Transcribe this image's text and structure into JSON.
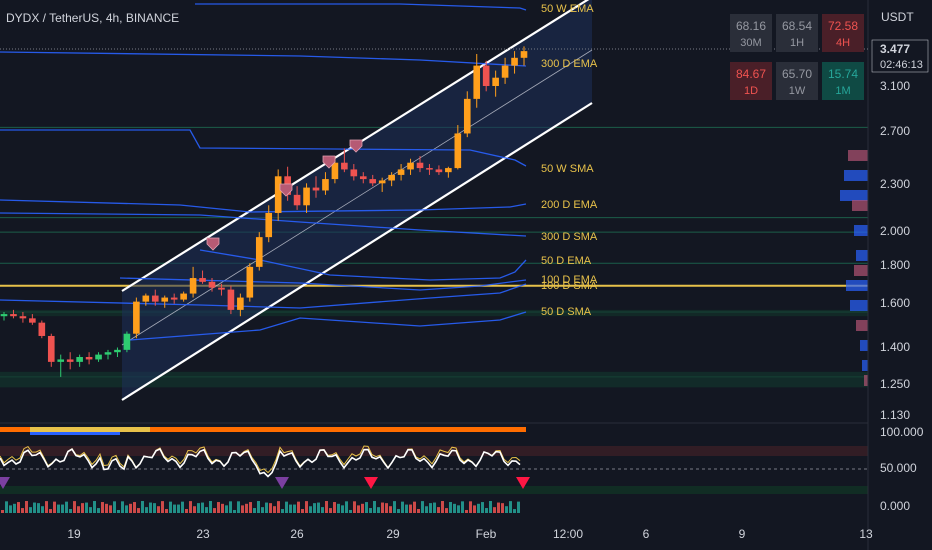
{
  "header": {
    "symbol": "DYDX / TetherUS, 4h, BINANCE",
    "quote": "USDT"
  },
  "colors": {
    "background": "#131722",
    "up": "#26a69a",
    "down": "#ef5350",
    "ma_blue": "#2962ff",
    "channel": "#ffffff",
    "channel_fill": "#1e2f5a",
    "hline_yellow": "#e8c24a",
    "label_yellow": "#e8c24a"
  },
  "chart_data": {
    "type": "candlestick",
    "y_scale": "log",
    "ylim": [
      1.13,
      4.1
    ],
    "price_ticks": [
      "3.100",
      "2.700",
      "2.300",
      "2.000",
      "1.800",
      "1.600",
      "1.400",
      "1.250",
      "1.130"
    ],
    "time_ticks": [
      "19",
      "23",
      "26",
      "29",
      "Feb",
      "12:00",
      "6",
      "9",
      "13"
    ],
    "current_price": "3.477",
    "countdown": "02:46:13",
    "ma_labels": [
      "50 W EMA",
      "300 D EMA",
      "50 W SMA",
      "200 D EMA",
      "300 D SMA",
      "50 D EMA",
      "100 D EMA",
      "100 D SMA",
      "50 D SMA"
    ],
    "horizontal_levels": [
      2.73,
      2.07,
      1.98,
      1.8,
      1.68,
      1.55,
      1.27
    ],
    "candles": [
      [
        1.53,
        1.55,
        1.51,
        1.54
      ],
      [
        1.54,
        1.56,
        1.52,
        1.53
      ],
      [
        1.53,
        1.55,
        1.5,
        1.52
      ],
      [
        1.52,
        1.54,
        1.49,
        1.5
      ],
      [
        1.5,
        1.51,
        1.43,
        1.44
      ],
      [
        1.44,
        1.45,
        1.31,
        1.33
      ],
      [
        1.33,
        1.36,
        1.27,
        1.34
      ],
      [
        1.34,
        1.37,
        1.3,
        1.33
      ],
      [
        1.33,
        1.36,
        1.31,
        1.35
      ],
      [
        1.35,
        1.37,
        1.32,
        1.34
      ],
      [
        1.34,
        1.37,
        1.33,
        1.36
      ],
      [
        1.36,
        1.38,
        1.34,
        1.37
      ],
      [
        1.37,
        1.39,
        1.35,
        1.38
      ],
      [
        1.38,
        1.46,
        1.37,
        1.45
      ],
      [
        1.45,
        1.62,
        1.43,
        1.6
      ],
      [
        1.6,
        1.64,
        1.58,
        1.63
      ],
      [
        1.63,
        1.66,
        1.58,
        1.6
      ],
      [
        1.6,
        1.63,
        1.57,
        1.62
      ],
      [
        1.62,
        1.64,
        1.59,
        1.61
      ],
      [
        1.61,
        1.65,
        1.6,
        1.64
      ],
      [
        1.64,
        1.78,
        1.62,
        1.72
      ],
      [
        1.72,
        1.76,
        1.69,
        1.7
      ],
      [
        1.7,
        1.72,
        1.65,
        1.67
      ],
      [
        1.67,
        1.69,
        1.63,
        1.66
      ],
      [
        1.66,
        1.68,
        1.54,
        1.56
      ],
      [
        1.56,
        1.64,
        1.53,
        1.62
      ],
      [
        1.62,
        1.8,
        1.6,
        1.78
      ],
      [
        1.78,
        1.98,
        1.76,
        1.95
      ],
      [
        1.95,
        2.15,
        1.92,
        2.1
      ],
      [
        2.1,
        2.4,
        2.05,
        2.35
      ],
      [
        2.35,
        2.42,
        2.18,
        2.22
      ],
      [
        2.22,
        2.28,
        2.12,
        2.15
      ],
      [
        2.15,
        2.3,
        2.1,
        2.27
      ],
      [
        2.27,
        2.35,
        2.2,
        2.25
      ],
      [
        2.25,
        2.38,
        2.22,
        2.33
      ],
      [
        2.33,
        2.5,
        2.3,
        2.45
      ],
      [
        2.45,
        2.56,
        2.38,
        2.4
      ],
      [
        2.4,
        2.44,
        2.32,
        2.35
      ],
      [
        2.35,
        2.38,
        2.3,
        2.33
      ],
      [
        2.33,
        2.36,
        2.28,
        2.3
      ],
      [
        2.3,
        2.34,
        2.24,
        2.32
      ],
      [
        2.32,
        2.38,
        2.28,
        2.36
      ],
      [
        2.36,
        2.44,
        2.32,
        2.4
      ],
      [
        2.4,
        2.48,
        2.36,
        2.45
      ],
      [
        2.45,
        2.5,
        2.38,
        2.41
      ],
      [
        2.41,
        2.44,
        2.36,
        2.4
      ],
      [
        2.4,
        2.43,
        2.36,
        2.38
      ],
      [
        2.38,
        2.42,
        2.34,
        2.41
      ],
      [
        2.41,
        2.75,
        2.4,
        2.68
      ],
      [
        2.68,
        3.05,
        2.65,
        2.98
      ],
      [
        2.98,
        3.42,
        2.9,
        3.3
      ],
      [
        3.3,
        3.35,
        3.05,
        3.1
      ],
      [
        3.1,
        3.25,
        3.0,
        3.18
      ],
      [
        3.18,
        3.38,
        3.12,
        3.3
      ],
      [
        3.3,
        3.45,
        3.22,
        3.38
      ],
      [
        3.38,
        3.5,
        3.3,
        3.45
      ]
    ],
    "timeframe_strength": [
      {
        "value": "68.16",
        "label": "30M",
        "tone": "neutral"
      },
      {
        "value": "68.54",
        "label": "1H",
        "tone": "neutral"
      },
      {
        "value": "72.58",
        "label": "4H",
        "tone": "bear"
      },
      {
        "value": "84.67",
        "label": "1D",
        "tone": "bear"
      },
      {
        "value": "65.70",
        "label": "1W",
        "tone": "neutral"
      },
      {
        "value": "15.74",
        "label": "1M",
        "tone": "bull"
      }
    ],
    "oscillator_ticks": [
      "100.000",
      "50.000",
      "0.000"
    ]
  }
}
